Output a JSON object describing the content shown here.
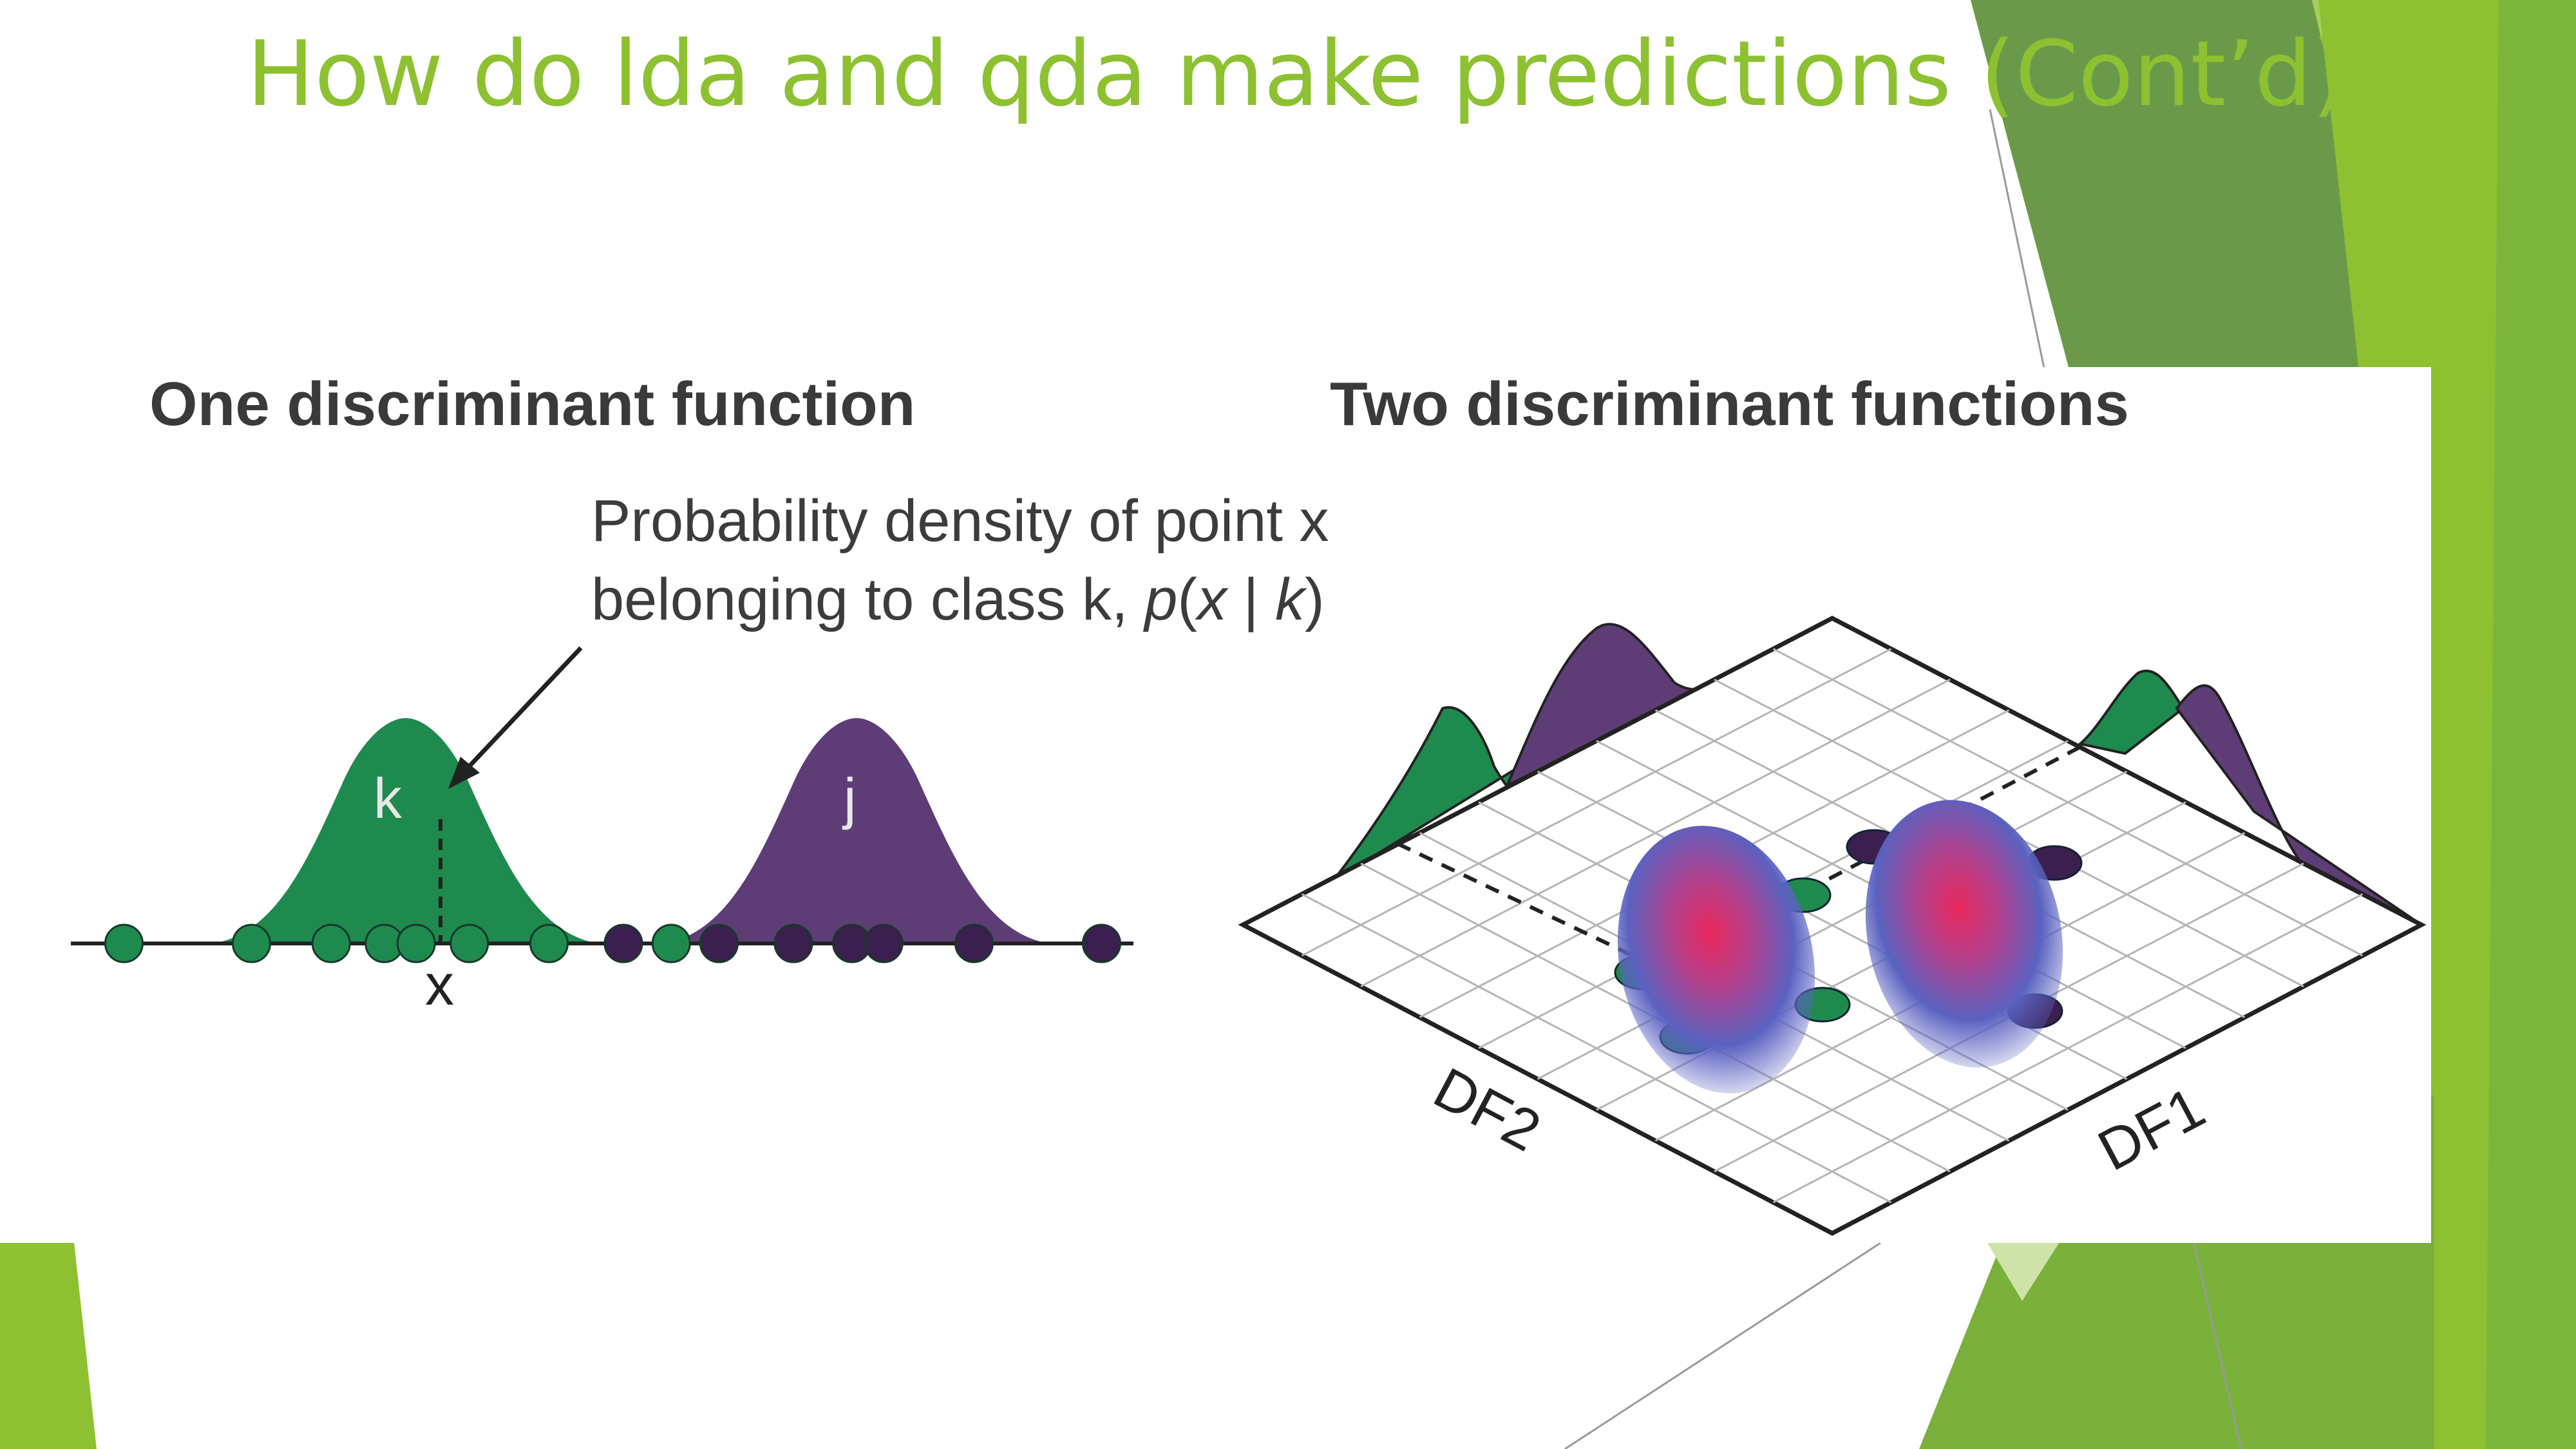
{
  "theme": {
    "accent": "#8dc131",
    "accent_dark": "#6a9a49",
    "accent_mid": "#79b13a",
    "accent_light": "#cfe3a8",
    "class_k_color": "#1f8a4e",
    "class_j_color": "#5e3d77",
    "point_j_color": "#3b1f4e"
  },
  "slide": {
    "title": "How do lda and qda make predictions (Cont’d)"
  },
  "figure": {
    "left_panel": {
      "title": "One discriminant function",
      "annotation_line1": "Probability density of point x",
      "annotation_line2_prefix": "belonging to class k, ",
      "annotation_formula_p": "p",
      "annotation_formula_open": "(",
      "annotation_formula_x": "x",
      "annotation_formula_bar": " | ",
      "annotation_formula_k": "k",
      "annotation_formula_close": ")",
      "curve_k_label": "k",
      "curve_j_label": "j",
      "point_marker_label": "x",
      "class_k_points": [
        0.05,
        0.17,
        0.245,
        0.295,
        0.325,
        0.375,
        0.45,
        0.565
      ],
      "class_j_points": [
        0.52,
        0.61,
        0.68,
        0.735,
        0.765,
        0.85,
        0.97
      ]
    },
    "right_panel": {
      "title": "Two discriminant functions",
      "axis_df2_label": "DF2",
      "axis_df1_label": "DF1"
    }
  }
}
